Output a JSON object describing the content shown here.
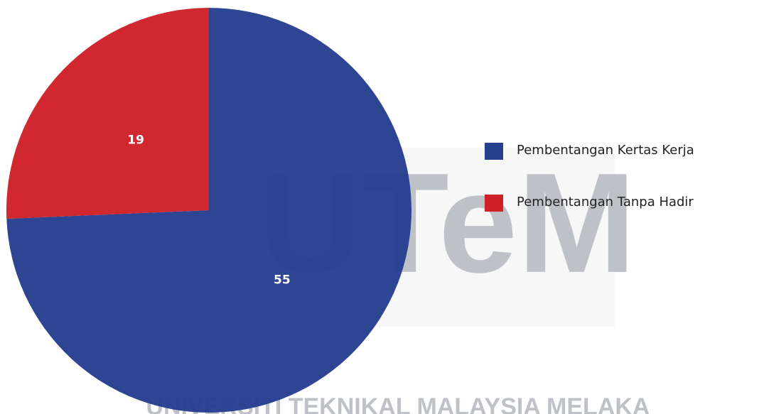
{
  "chart_data": {
    "type": "pie",
    "categories": [
      "Pembentangan Kertas Kerja",
      "Pembentangan Tanpa Hadir"
    ],
    "values": [
      55,
      19
    ],
    "colors": [
      "#263f8f",
      "#cf2027"
    ],
    "legend": "right",
    "watermark": "UTeM",
    "watermark_caption": "UNIVERSITI TEKNIKAL MALAYSIA MELAKA"
  }
}
